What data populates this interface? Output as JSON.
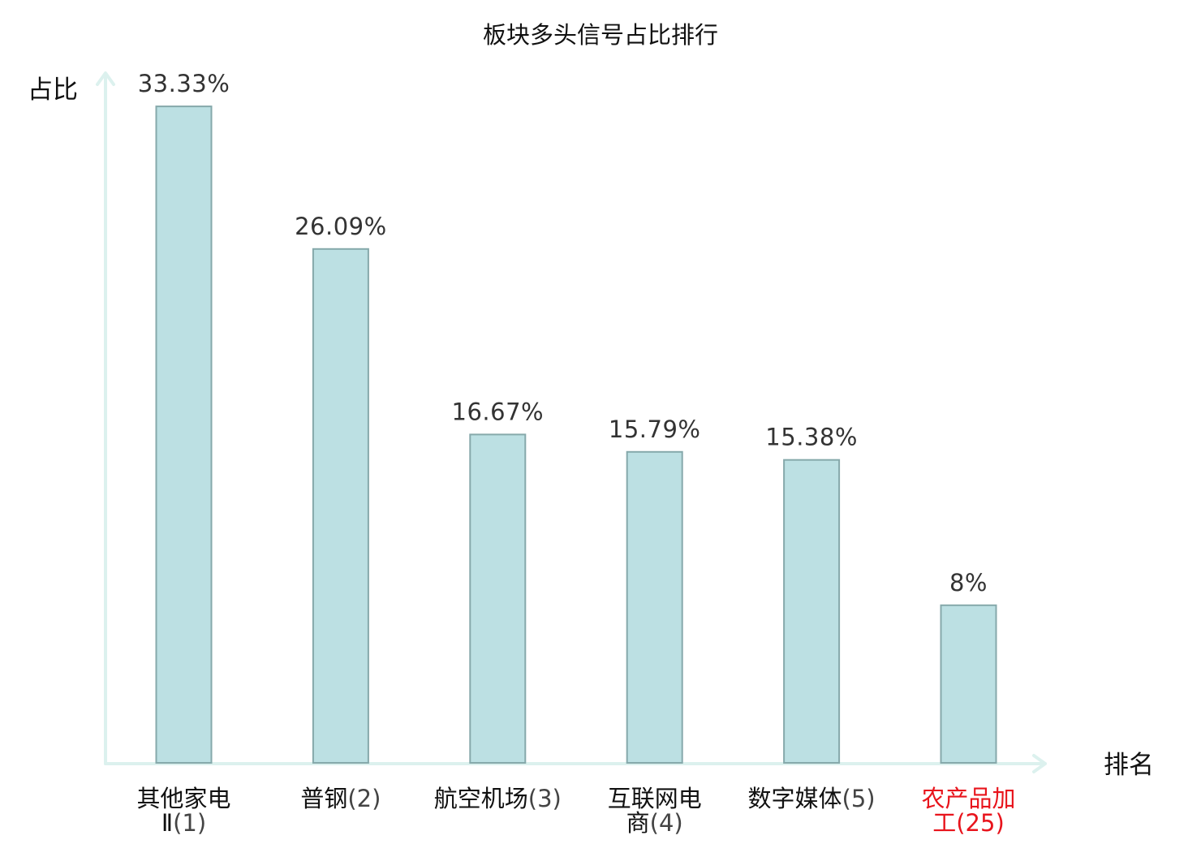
{
  "chart_data": {
    "type": "bar",
    "title": "板块多头信号占比排行",
    "xlabel": "排名",
    "ylabel": "占比",
    "unit": "%",
    "ylim": [
      0,
      35
    ],
    "grid": false,
    "legend": "none",
    "categories": [
      {
        "name_lines": [
          "其他家电"
        ],
        "rank_prefix": "Ⅱ",
        "rank": "(1)"
      },
      {
        "name_lines": [
          "普钢"
        ],
        "rank_prefix": "",
        "rank": "(2)"
      },
      {
        "name_lines": [
          "航空机场"
        ],
        "rank_prefix": "",
        "rank": "(3)"
      },
      {
        "name_lines": [
          "互联网电"
        ],
        "rank_prefix": "商",
        "rank": "(4)"
      },
      {
        "name_lines": [
          "数字媒体"
        ],
        "rank_prefix": "",
        "rank": "(5)"
      },
      {
        "name_lines": [
          "农产品加"
        ],
        "rank_prefix": "工",
        "rank": "(25)",
        "highlight": true
      }
    ],
    "values": [
      33.33,
      26.09,
      16.67,
      15.79,
      15.38,
      8
    ],
    "value_labels": [
      "33.33%",
      "26.09%",
      "16.67%",
      "15.79%",
      "15.38%",
      "8%"
    ],
    "colors": {
      "bar_fill": "#bce0e3",
      "bar_stroke": "#86a9ab",
      "axis": "#dcf1ee",
      "highlight": "#e8141c"
    }
  }
}
